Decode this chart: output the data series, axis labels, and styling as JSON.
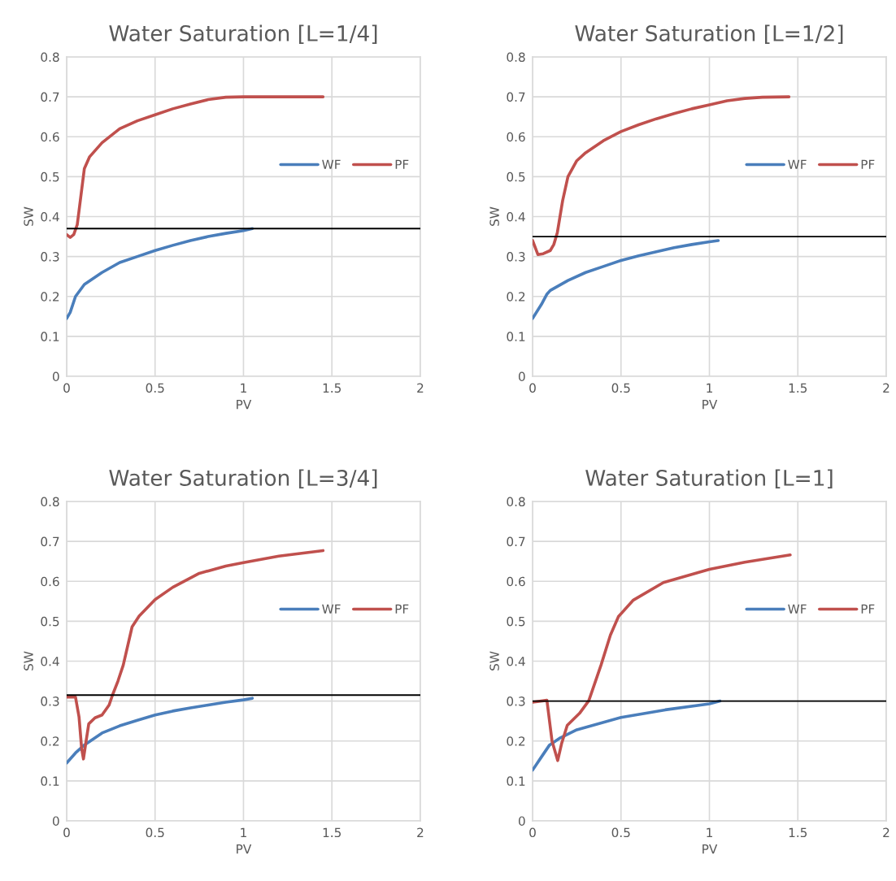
{
  "chart_data": [
    {
      "type": "line",
      "title": "Water Saturation [L=1/4]",
      "xlabel": "PV",
      "ylabel": "SW",
      "xlim": [
        0,
        2
      ],
      "ylim": [
        0,
        0.8
      ],
      "xticks": [
        0,
        0.5,
        1,
        1.5,
        2
      ],
      "yticks": [
        0,
        0.1,
        0.2,
        0.3,
        0.4,
        0.5,
        0.6,
        0.7,
        0.8
      ],
      "grid": true,
      "legend": "right",
      "marker": "none",
      "ref_lines": [
        {
          "axis": "y",
          "value": 0.37,
          "color": "#000000"
        }
      ],
      "series": [
        {
          "name": "WF",
          "color": "#4a7ebb",
          "x": [
            0,
            0.02,
            0.05,
            0.1,
            0.2,
            0.3,
            0.4,
            0.5,
            0.6,
            0.7,
            0.8,
            0.9,
            1.0,
            1.05
          ],
          "values": [
            0.145,
            0.16,
            0.2,
            0.23,
            0.26,
            0.285,
            0.3,
            0.315,
            0.328,
            0.34,
            0.35,
            0.358,
            0.365,
            0.37
          ]
        },
        {
          "name": "PF",
          "color": "#c0504d",
          "x": [
            0,
            0.02,
            0.04,
            0.06,
            0.08,
            0.1,
            0.13,
            0.2,
            0.3,
            0.4,
            0.5,
            0.6,
            0.7,
            0.8,
            0.9,
            1.0,
            1.2,
            1.45
          ],
          "values": [
            0.355,
            0.348,
            0.355,
            0.38,
            0.45,
            0.52,
            0.55,
            0.585,
            0.62,
            0.64,
            0.655,
            0.67,
            0.682,
            0.693,
            0.699,
            0.7,
            0.7,
            0.7
          ]
        }
      ]
    },
    {
      "type": "line",
      "title": "Water Saturation [L=1/2]",
      "xlabel": "PV",
      "ylabel": "SW",
      "xlim": [
        0,
        2
      ],
      "ylim": [
        0,
        0.8
      ],
      "xticks": [
        0,
        0.5,
        1,
        1.5,
        2
      ],
      "yticks": [
        0,
        0.1,
        0.2,
        0.3,
        0.4,
        0.5,
        0.6,
        0.7,
        0.8
      ],
      "grid": true,
      "legend": "right",
      "marker": "none",
      "ref_lines": [
        {
          "axis": "y",
          "value": 0.35,
          "color": "#000000"
        }
      ],
      "series": [
        {
          "name": "WF",
          "color": "#4a7ebb",
          "x": [
            0,
            0.05,
            0.08,
            0.1,
            0.2,
            0.3,
            0.4,
            0.5,
            0.6,
            0.7,
            0.8,
            0.9,
            1.0,
            1.05
          ],
          "values": [
            0.145,
            0.18,
            0.205,
            0.215,
            0.24,
            0.26,
            0.275,
            0.29,
            0.302,
            0.312,
            0.322,
            0.33,
            0.337,
            0.34
          ]
        },
        {
          "name": "PF",
          "color": "#c0504d",
          "x": [
            0,
            0.03,
            0.06,
            0.1,
            0.12,
            0.14,
            0.17,
            0.2,
            0.25,
            0.3,
            0.4,
            0.5,
            0.6,
            0.7,
            0.8,
            0.9,
            1.0,
            1.1,
            1.2,
            1.3,
            1.45
          ],
          "values": [
            0.34,
            0.305,
            0.307,
            0.315,
            0.33,
            0.36,
            0.44,
            0.5,
            0.54,
            0.56,
            0.59,
            0.613,
            0.63,
            0.645,
            0.658,
            0.67,
            0.68,
            0.69,
            0.696,
            0.699,
            0.7
          ]
        }
      ]
    },
    {
      "type": "line",
      "title": "Water Saturation [L=3/4]",
      "xlabel": "PV",
      "ylabel": "SW",
      "xlim": [
        0,
        2
      ],
      "ylim": [
        0,
        0.8
      ],
      "xticks": [
        0,
        0.5,
        1,
        1.5,
        2
      ],
      "yticks": [
        0,
        0.1,
        0.2,
        0.3,
        0.4,
        0.5,
        0.6,
        0.7,
        0.8
      ],
      "grid": true,
      "legend": "right",
      "marker": "none",
      "ref_lines": [
        {
          "axis": "y",
          "value": 0.315,
          "color": "#000000"
        }
      ],
      "series": [
        {
          "name": "WF",
          "color": "#4a7ebb",
          "x": [
            0,
            0.05,
            0.1,
            0.2,
            0.3,
            0.4,
            0.5,
            0.6,
            0.7,
            0.8,
            0.9,
            1.0,
            1.05
          ],
          "values": [
            0.145,
            0.17,
            0.19,
            0.22,
            0.238,
            0.252,
            0.265,
            0.275,
            0.283,
            0.29,
            0.297,
            0.303,
            0.307
          ]
        },
        {
          "name": "PF",
          "color": "#c0504d",
          "x": [
            0,
            0.05,
            0.07,
            0.085,
            0.095,
            0.11,
            0.125,
            0.16,
            0.2,
            0.24,
            0.26,
            0.29,
            0.32,
            0.37,
            0.41,
            0.5,
            0.6,
            0.75,
            0.9,
            1.0,
            1.2,
            1.45
          ],
          "values": [
            0.31,
            0.31,
            0.26,
            0.18,
            0.155,
            0.2,
            0.243,
            0.258,
            0.265,
            0.29,
            0.316,
            0.35,
            0.39,
            0.486,
            0.513,
            0.554,
            0.585,
            0.62,
            0.638,
            0.647,
            0.663,
            0.677
          ]
        }
      ]
    },
    {
      "type": "line",
      "title": "Water Saturation [L=1]",
      "xlabel": "PV",
      "ylabel": "SW",
      "xlim": [
        0,
        2
      ],
      "ylim": [
        0,
        0.8
      ],
      "xticks": [
        0,
        0.5,
        1,
        1.5,
        2
      ],
      "yticks": [
        0,
        0.1,
        0.2,
        0.3,
        0.4,
        0.5,
        0.6,
        0.7,
        0.8
      ],
      "grid": true,
      "legend": "right",
      "marker": "none",
      "ref_lines": [
        {
          "axis": "y",
          "value": 0.3,
          "color": "#000000"
        }
      ],
      "series": [
        {
          "name": "WF",
          "color": "#4a7ebb",
          "x": [
            0,
            0.05,
            0.096,
            0.157,
            0.25,
            0.5,
            0.75,
            1.0,
            1.06
          ],
          "values": [
            0.127,
            0.16,
            0.19,
            0.208,
            0.228,
            0.259,
            0.278,
            0.293,
            0.3
          ]
        },
        {
          "name": "PF",
          "color": "#c0504d",
          "x": [
            0,
            0.081,
            0.11,
            0.142,
            0.165,
            0.196,
            0.265,
            0.318,
            0.387,
            0.44,
            0.486,
            0.57,
            0.74,
            1.0,
            1.2,
            1.457
          ],
          "values": [
            0.297,
            0.302,
            0.2,
            0.151,
            0.195,
            0.239,
            0.269,
            0.301,
            0.39,
            0.465,
            0.512,
            0.553,
            0.597,
            0.63,
            0.648,
            0.666
          ]
        }
      ]
    }
  ]
}
